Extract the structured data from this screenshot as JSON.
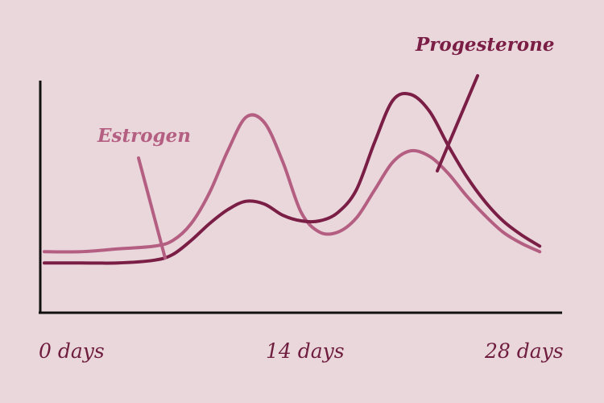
{
  "chart_data": {
    "type": "line",
    "title": "",
    "xlabel": "",
    "ylabel": "",
    "xlim": [
      0,
      28
    ],
    "ylim": [
      0,
      100
    ],
    "x_ticks": [
      {
        "value": 0,
        "label": "0 days"
      },
      {
        "value": 14,
        "label": "14 days"
      },
      {
        "value": 28,
        "label": "28 days"
      }
    ],
    "grid": false,
    "legend": "inline labels",
    "series": [
      {
        "name": "Estrogen",
        "color": "#b45f82",
        "x": [
          0,
          2,
          4,
          6,
          7,
          8,
          9,
          10,
          11,
          12,
          13,
          14,
          15,
          16,
          17,
          18,
          19,
          20,
          21,
          22,
          23,
          24,
          25,
          26,
          27
        ],
        "y": [
          16,
          16,
          17,
          18,
          20,
          26,
          37,
          52,
          64,
          62,
          48,
          30,
          23,
          23,
          28,
          38,
          48,
          52,
          50,
          44,
          36,
          29,
          23,
          19,
          16
        ]
      },
      {
        "name": "Progesterone",
        "color": "#7a1e46",
        "x": [
          0,
          2,
          4,
          6,
          7,
          8,
          9,
          10,
          11,
          12,
          13,
          14,
          15,
          16,
          17,
          18,
          19,
          20,
          21,
          22,
          23,
          24,
          25,
          26,
          27
        ],
        "y": [
          12,
          12,
          12,
          13,
          15,
          20,
          26,
          31,
          34,
          33,
          29,
          27,
          27,
          30,
          38,
          55,
          70,
          72,
          66,
          54,
          43,
          34,
          27,
          22,
          18
        ]
      }
    ],
    "annotations": [
      {
        "series": "Estrogen",
        "text": "Estrogen",
        "x": 6.6
      },
      {
        "series": "Progesterone",
        "text": "Progesterone",
        "x": 21
      }
    ]
  }
}
